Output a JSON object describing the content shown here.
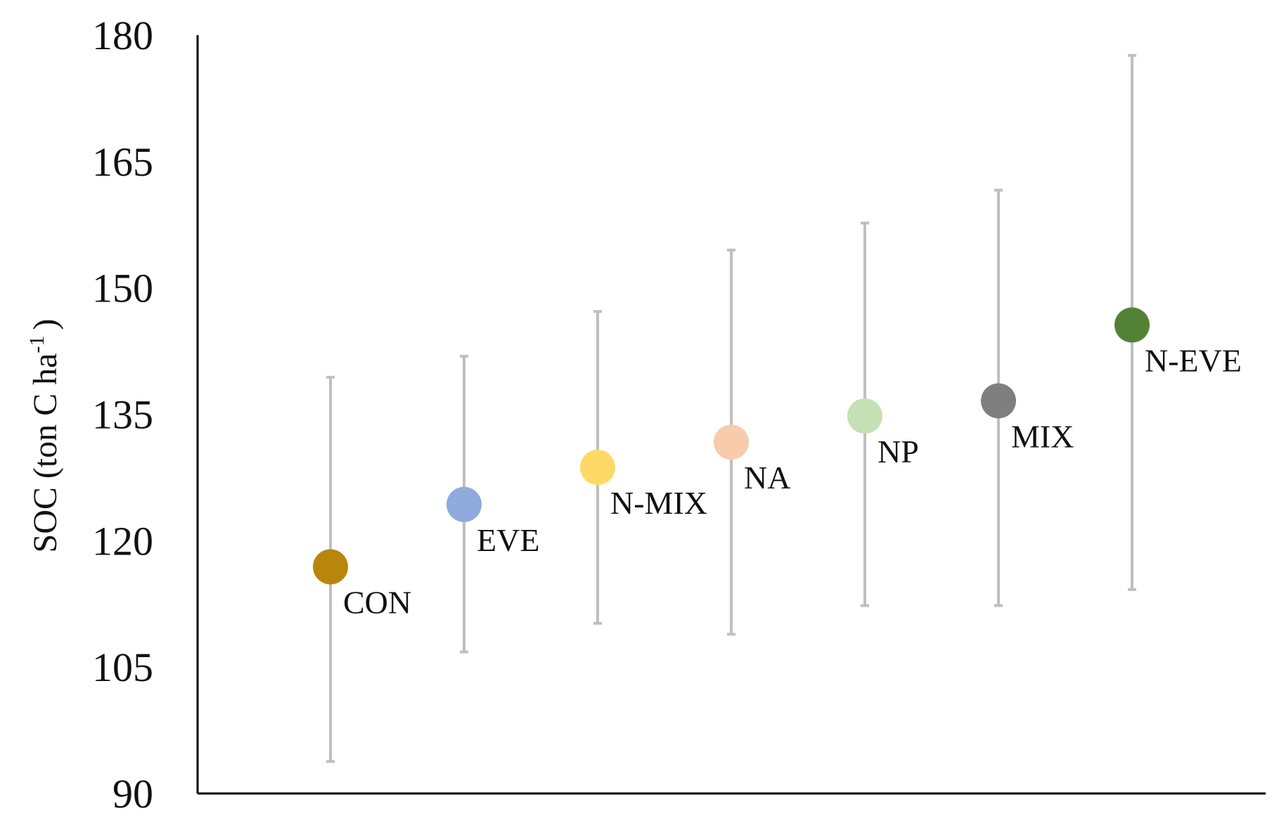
{
  "chart_data": {
    "type": "scatter",
    "title": "",
    "xlabel": "",
    "ylabel": {
      "main": "SOC (ton  C ha",
      "superscript": "-1",
      "closing": ")"
    },
    "ylim": [
      90,
      180
    ],
    "yticks": [
      90,
      105,
      120,
      135,
      150,
      165,
      180
    ],
    "ytick_labels": [
      "90",
      "105",
      "120",
      "135",
      "150",
      "165",
      "180"
    ],
    "grid": false,
    "legend": "none",
    "categories": [
      "CON",
      "EVE",
      "N-MIX",
      "NA",
      "NP",
      "MIX",
      "N-EVE"
    ],
    "points": [
      {
        "label": "CON",
        "x": 1,
        "y": 116.9,
        "err_low": 93.8,
        "err_high": 139.4,
        "color": "#B8860B"
      },
      {
        "label": "EVE",
        "x": 2,
        "y": 124.3,
        "err_low": 106.8,
        "err_high": 141.9,
        "color": "#8FAADC"
      },
      {
        "label": "N-MIX",
        "x": 3,
        "y": 128.7,
        "err_low": 110.2,
        "err_high": 147.2,
        "color": "#FFD966"
      },
      {
        "label": "NA",
        "x": 4,
        "y": 131.7,
        "err_low": 108.9,
        "err_high": 154.5,
        "color": "#F8CBAD"
      },
      {
        "label": "NP",
        "x": 5,
        "y": 134.8,
        "err_low": 112.3,
        "err_high": 157.7,
        "color": "#C5E0B4"
      },
      {
        "label": "MIX",
        "x": 6,
        "y": 136.6,
        "err_low": 112.3,
        "err_high": 161.6,
        "color": "#7F7F7F"
      },
      {
        "label": "N-EVE",
        "x": 7,
        "y": 145.6,
        "err_low": 114.2,
        "err_high": 177.6,
        "color": "#548235"
      }
    ],
    "errorbar_color": "#BFBFBF",
    "axis_color": "#000000"
  }
}
